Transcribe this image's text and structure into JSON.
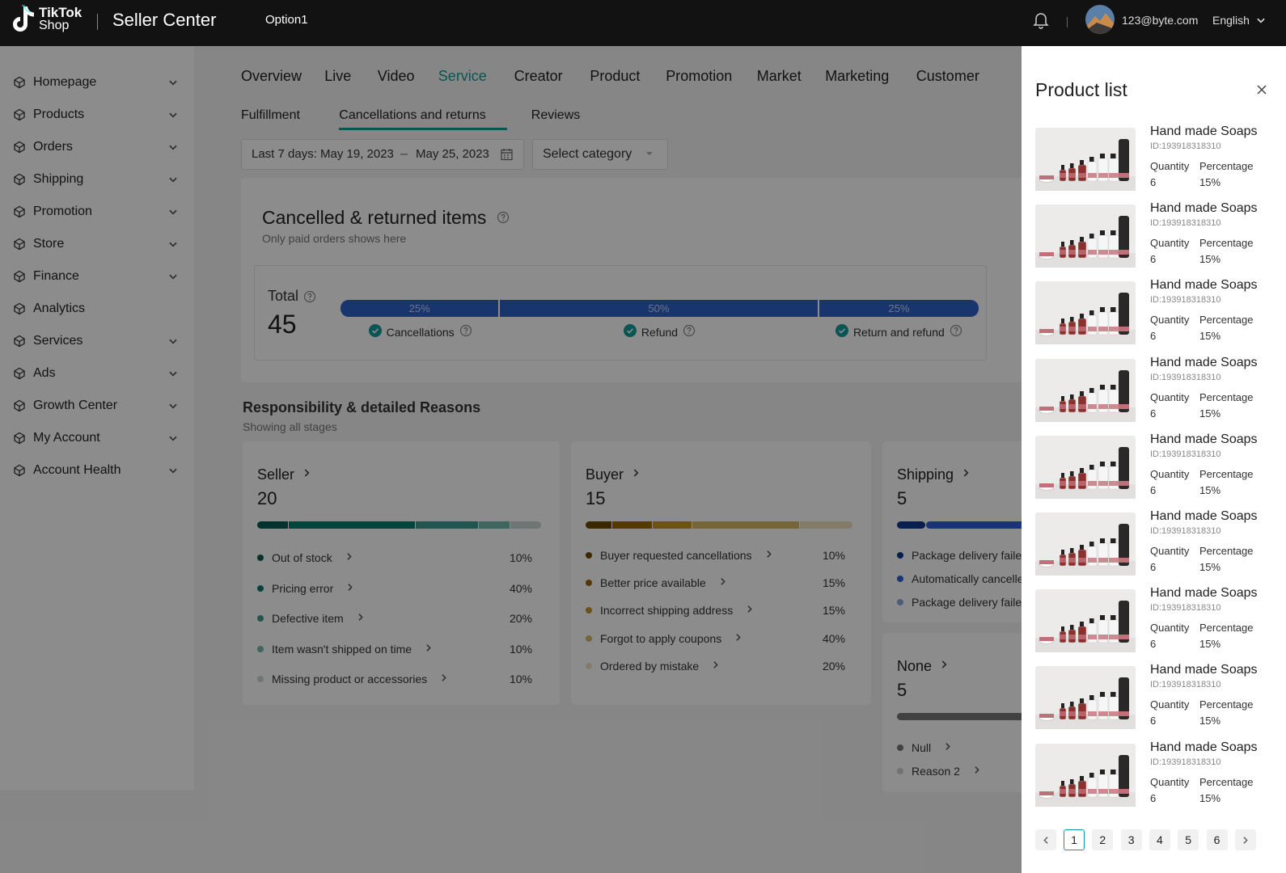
{
  "header": {
    "logo_top": "TikTok",
    "logo_bottom": "Shop",
    "app_name": "Seller Center",
    "option": "Option1",
    "email": "123@byte.com",
    "language": "English"
  },
  "sidebar": {
    "items": [
      {
        "label": "Homepage",
        "expandable": true
      },
      {
        "label": "Products",
        "expandable": true
      },
      {
        "label": "Orders",
        "expandable": true
      },
      {
        "label": "Shipping",
        "expandable": true
      },
      {
        "label": "Promotion",
        "expandable": true
      },
      {
        "label": "Store",
        "expandable": true
      },
      {
        "label": "Finance",
        "expandable": true
      },
      {
        "label": "Analytics",
        "expandable": false
      },
      {
        "label": "Services",
        "expandable": true
      },
      {
        "label": "Ads",
        "expandable": true
      },
      {
        "label": "Growth Center",
        "expandable": true
      },
      {
        "label": "My Account",
        "expandable": true
      },
      {
        "label": "Account Health",
        "expandable": true
      }
    ]
  },
  "tabs": {
    "items": [
      "Overview",
      "Live",
      "Video",
      "Service",
      "Creator",
      "Product",
      "Promotion",
      "Market",
      "Marketing",
      "Customer"
    ],
    "active": 3
  },
  "subtabs": {
    "items": [
      "Fulfillment",
      "Cancellations and returns",
      "Reviews"
    ],
    "active": 1
  },
  "filters": {
    "range_label": "Last 7 days:",
    "start": "May 19, 2023",
    "separator": "–",
    "end": "May 25, 2023",
    "category": "Select category"
  },
  "summary": {
    "title": "Cancelled & returned items",
    "subtitle": "Only paid orders shows here",
    "total_label": "Total",
    "total": 45,
    "segments": [
      {
        "label": "Cancellations",
        "value": 25,
        "value_label": "25%"
      },
      {
        "label": "Refund",
        "value": 50,
        "value_label": "50%"
      },
      {
        "label": "Return and refund",
        "value": 25,
        "value_label": "25%"
      }
    ]
  },
  "responsibility": {
    "title": "Responsibility & detailed Reasons",
    "subtitle": "Showing all stages",
    "groups": [
      {
        "name": "Seller",
        "total": 20,
        "reasons": [
          {
            "label": "Out of stock",
            "value": 10,
            "value_label": "10%",
            "color": "#0b5c55"
          },
          {
            "label": "Pricing error",
            "value": 40,
            "value_label": "40%",
            "color": "#0e7a70"
          },
          {
            "label": "Defective item",
            "value": 20,
            "value_label": "20%",
            "color": "#3f9b92"
          },
          {
            "label": "Item wasn't shipped on time",
            "value": 10,
            "value_label": "10%",
            "color": "#74b8b1"
          },
          {
            "label": "Missing product or accessories",
            "value": 10,
            "value_label": "10%",
            "color": "#c9d6d4"
          }
        ]
      },
      {
        "name": "Buyer",
        "total": 15,
        "reasons": [
          {
            "label": "Buyer requested cancellations",
            "value": 10,
            "value_label": "10%",
            "color": "#6b4a00"
          },
          {
            "label": "Better price available",
            "value": 15,
            "value_label": "15%",
            "color": "#9a6b05"
          },
          {
            "label": "Incorrect shipping address",
            "value": 15,
            "value_label": "15%",
            "color": "#c5952a"
          },
          {
            "label": "Forgot to apply coupons",
            "value": 40,
            "value_label": "40%",
            "color": "#d8b66a"
          },
          {
            "label": "Ordered by mistake",
            "value": 20,
            "value_label": "20%",
            "color": "#ede0be"
          }
        ]
      },
      {
        "name": "Shipping",
        "total": 5,
        "reasons": [
          {
            "label": "Package delivery failed",
            "color": "#0f3a8c"
          },
          {
            "label": "Automatically cancelled",
            "color": "#2f62d8"
          },
          {
            "label": "Package delivery failed",
            "color": "#8aa8ea"
          }
        ]
      },
      {
        "name": "None",
        "total": 5,
        "reasons": [
          {
            "label": "Null",
            "color": "#777777"
          },
          {
            "label": "Reason 2",
            "color": "#cfcfcf"
          }
        ]
      }
    ]
  },
  "drawer": {
    "title": "Product list",
    "products": [
      {
        "name": "Hand made Soaps",
        "id": "ID:193918318310",
        "quantity_label": "Quantity",
        "quantity": 6,
        "percentage_label": "Percentage",
        "percentage": "15%"
      },
      {
        "name": "Hand made Soaps",
        "id": "ID:193918318310",
        "quantity_label": "Quantity",
        "quantity": 6,
        "percentage_label": "Percentage",
        "percentage": "15%"
      },
      {
        "name": "Hand made Soaps",
        "id": "ID:193918318310",
        "quantity_label": "Quantity",
        "quantity": 6,
        "percentage_label": "Percentage",
        "percentage": "15%"
      },
      {
        "name": "Hand made Soaps",
        "id": "ID:193918318310",
        "quantity_label": "Quantity",
        "quantity": 6,
        "percentage_label": "Percentage",
        "percentage": "15%"
      },
      {
        "name": "Hand made Soaps",
        "id": "ID:193918318310",
        "quantity_label": "Quantity",
        "quantity": 6,
        "percentage_label": "Percentage",
        "percentage": "15%"
      },
      {
        "name": "Hand made Soaps",
        "id": "ID:193918318310",
        "quantity_label": "Quantity",
        "quantity": 6,
        "percentage_label": "Percentage",
        "percentage": "15%"
      },
      {
        "name": "Hand made Soaps",
        "id": "ID:193918318310",
        "quantity_label": "Quantity",
        "quantity": 6,
        "percentage_label": "Percentage",
        "percentage": "15%"
      },
      {
        "name": "Hand made Soaps",
        "id": "ID:193918318310",
        "quantity_label": "Quantity",
        "quantity": 6,
        "percentage_label": "Percentage",
        "percentage": "15%"
      },
      {
        "name": "Hand made Soaps",
        "id": "ID:193918318310",
        "quantity_label": "Quantity",
        "quantity": 6,
        "percentage_label": "Percentage",
        "percentage": "15%"
      }
    ],
    "pages": [
      1,
      2,
      3,
      4,
      5,
      6
    ],
    "current": 0
  }
}
